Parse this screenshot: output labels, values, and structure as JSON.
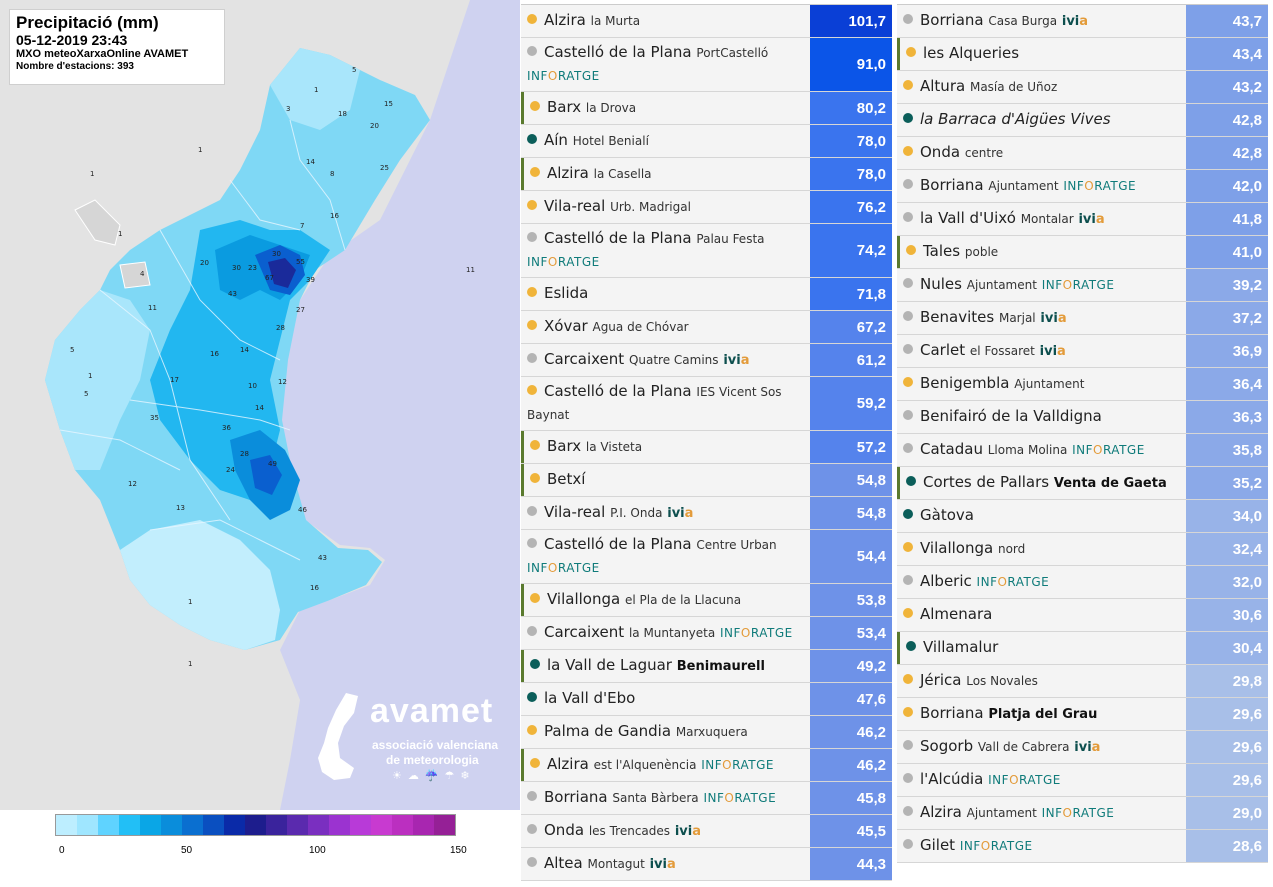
{
  "map": {
    "title": "Precipitació (mm)",
    "datetime": "05-12-2019 23:43",
    "source": "MXO meteoXarxaOnline AVAMET",
    "stations": "Nombre d'estacions: 393",
    "logo_name": "avamet",
    "logo_line1": "associació valenciana",
    "logo_line2": "de meteorologia",
    "logo_icons": "☀☁☔☂❄"
  },
  "legend": {
    "colors": [
      "#bdeeff",
      "#9fe6ff",
      "#5fd3ff",
      "#22bff6",
      "#0aa6e6",
      "#0a8ddb",
      "#0a6fd0",
      "#0a4fc0",
      "#0a2aa8",
      "#1d1d8d",
      "#3a239c",
      "#5a2aae",
      "#7a2fc0",
      "#9b33d0",
      "#b83ad8",
      "#c83ad0",
      "#bb2fc0",
      "#a826b0",
      "#952096"
    ],
    "ticks": [
      "0",
      "50",
      "100",
      "150"
    ]
  },
  "colors": {
    "dot_yellow": "#f0b43a",
    "dot_gray": "#b4b4b4",
    "dot_teal": "#0b5e5a"
  },
  "left_table": [
    {
      "name": "Alzira",
      "sub": "la Murta",
      "net": "",
      "dot": "yellow",
      "value": "101,7",
      "v": 101.7,
      "accent": false
    },
    {
      "name": "Castelló de la Plana",
      "sub": "PortCastelló",
      "net": "INFORATGE",
      "dot": "gray",
      "value": "91,0",
      "v": 91.0,
      "accent": false,
      "tall": true
    },
    {
      "name": "Barx",
      "sub": "la Drova",
      "net": "",
      "dot": "yellow",
      "value": "80,2",
      "v": 80.2,
      "accent": true
    },
    {
      "name": "Aín",
      "sub": "Hotel Benialí",
      "net": "",
      "dot": "teal",
      "value": "78,0",
      "v": 78.0,
      "accent": false
    },
    {
      "name": "Alzira",
      "sub": "la Casella",
      "net": "",
      "dot": "yellow",
      "value": "78,0",
      "v": 78.0,
      "accent": true
    },
    {
      "name": "Vila-real",
      "sub": "Urb. Madrigal",
      "net": "",
      "dot": "yellow",
      "value": "76,2",
      "v": 76.2,
      "accent": false
    },
    {
      "name": "Castelló de la Plana",
      "sub": "Palau Festa",
      "net": "INFORATGE",
      "dot": "gray",
      "value": "74,2",
      "v": 74.2,
      "accent": false,
      "tall": true
    },
    {
      "name": "Eslida",
      "sub": "",
      "net": "",
      "dot": "yellow",
      "value": "71,8",
      "v": 71.8,
      "accent": false
    },
    {
      "name": "Xóvar",
      "sub": "Agua de Chóvar",
      "net": "",
      "dot": "yellow",
      "value": "67,2",
      "v": 67.2,
      "accent": false
    },
    {
      "name": "Carcaixent",
      "sub": "Quatre Camins",
      "ivia": true,
      "net": "",
      "dot": "gray",
      "value": "61,2",
      "v": 61.2,
      "accent": false
    },
    {
      "name": "Castelló de la Plana",
      "sub": "IES Vicent Sos Baynat",
      "net": "",
      "dot": "yellow",
      "value": "59,2",
      "v": 59.2,
      "accent": false,
      "tall": true
    },
    {
      "name": "Barx",
      "sub": "la Visteta",
      "net": "",
      "dot": "yellow",
      "value": "57,2",
      "v": 57.2,
      "accent": true
    },
    {
      "name": "Betxí",
      "sub": "",
      "net": "",
      "dot": "yellow",
      "value": "54,8",
      "v": 54.8,
      "accent": true
    },
    {
      "name": "Vila-real",
      "sub": "P.I. Onda",
      "ivia": true,
      "net": "",
      "dot": "gray",
      "value": "54,8",
      "v": 54.8,
      "accent": false
    },
    {
      "name": "Castelló de la Plana",
      "sub": "Centre Urban",
      "net": "INFORATGE",
      "dot": "gray",
      "value": "54,4",
      "v": 54.4,
      "accent": false,
      "tall": true
    },
    {
      "name": "Vilallonga",
      "sub": "el Pla de la Llacuna",
      "net": "",
      "dot": "yellow",
      "value": "53,8",
      "v": 53.8,
      "accent": true
    },
    {
      "name": "Carcaixent",
      "sub": "la Muntanyeta",
      "net": "INFORATGE",
      "dot": "gray",
      "value": "53,4",
      "v": 53.4,
      "accent": false
    },
    {
      "name": "la Vall de Laguar",
      "sub": "Benimaurell",
      "subbold": true,
      "net": "",
      "dot": "teal",
      "value": "49,2",
      "v": 49.2,
      "accent": true
    },
    {
      "name": "la Vall d'Ebo",
      "sub": "",
      "net": "",
      "dot": "teal",
      "value": "47,6",
      "v": 47.6,
      "accent": false
    },
    {
      "name": "Palma de Gandia",
      "sub": "Marxuquera",
      "net": "",
      "dot": "yellow",
      "value": "46,2",
      "v": 46.2,
      "accent": false
    },
    {
      "name": "Alzira",
      "sub": "est l'Alquenència",
      "net": "INFORATGE",
      "dot": "yellow",
      "value": "46,2",
      "v": 46.2,
      "accent": true
    },
    {
      "name": "Borriana",
      "sub": "Santa Bàrbera",
      "net": "INFORATGE",
      "dot": "gray",
      "value": "45,8",
      "v": 45.8,
      "accent": false
    },
    {
      "name": "Onda",
      "sub": "les Trencades",
      "ivia": true,
      "net": "",
      "dot": "gray",
      "value": "45,5",
      "v": 45.5,
      "accent": false
    },
    {
      "name": "Altea",
      "sub": "Montagut",
      "ivia": true,
      "net": "",
      "dot": "gray",
      "value": "44,3",
      "v": 44.3,
      "accent": false
    }
  ],
  "right_table": [
    {
      "name": "Borriana",
      "sub": "Casa Burga",
      "ivia": true,
      "net": "",
      "dot": "gray",
      "value": "43,7",
      "v": 43.7,
      "accent": false
    },
    {
      "name": "les Alqueries",
      "sub": "",
      "net": "",
      "dot": "yellow",
      "value": "43,4",
      "v": 43.4,
      "accent": true
    },
    {
      "name": "Altura",
      "sub": "Masía de Uñoz",
      "net": "",
      "dot": "yellow",
      "value": "43,2",
      "v": 43.2,
      "accent": false
    },
    {
      "name": "la Barraca d'Aigües Vives",
      "sub": "",
      "net": "",
      "dot": "teal",
      "value": "42,8",
      "v": 42.8,
      "accent": false,
      "italic": true
    },
    {
      "name": "Onda",
      "sub": "centre",
      "net": "",
      "dot": "yellow",
      "value": "42,8",
      "v": 42.8,
      "accent": false
    },
    {
      "name": "Borriana",
      "sub": "Ajuntament",
      "net": "INFORATGE",
      "dot": "gray",
      "value": "42,0",
      "v": 42.0,
      "accent": false
    },
    {
      "name": "la Vall d'Uixó",
      "sub": "Montalar",
      "ivia": true,
      "net": "",
      "dot": "gray",
      "value": "41,8",
      "v": 41.8,
      "accent": false
    },
    {
      "name": "Tales",
      "sub": "poble",
      "net": "",
      "dot": "yellow",
      "value": "41,0",
      "v": 41.0,
      "accent": true
    },
    {
      "name": "Nules",
      "sub": "Ajuntament",
      "net": "INFORATGE",
      "dot": "gray",
      "value": "39,2",
      "v": 39.2,
      "accent": false
    },
    {
      "name": "Benavites",
      "sub": "Marjal",
      "ivia": true,
      "net": "",
      "dot": "gray",
      "value": "37,2",
      "v": 37.2,
      "accent": false
    },
    {
      "name": "Carlet",
      "sub": "el Fossaret",
      "ivia": true,
      "net": "",
      "dot": "gray",
      "value": "36,9",
      "v": 36.9,
      "accent": false
    },
    {
      "name": "Benigembla",
      "sub": "Ajuntament",
      "net": "",
      "dot": "yellow",
      "value": "36,4",
      "v": 36.4,
      "accent": false
    },
    {
      "name": "Benifairó de la Valldigna",
      "sub": "",
      "net": "",
      "dot": "gray",
      "value": "36,3",
      "v": 36.3,
      "accent": false
    },
    {
      "name": "Catadau",
      "sub": "Lloma Molina",
      "net": "INFORATGE",
      "dot": "gray",
      "value": "35,8",
      "v": 35.8,
      "accent": false
    },
    {
      "name": "Cortes de Pallars",
      "sub": "Venta de Gaeta",
      "subbold": true,
      "net": "",
      "dot": "teal",
      "value": "35,2",
      "v": 35.2,
      "accent": true
    },
    {
      "name": "Gàtova",
      "sub": "",
      "net": "",
      "dot": "teal",
      "value": "34,0",
      "v": 34.0,
      "accent": false
    },
    {
      "name": "Vilallonga",
      "sub": "nord",
      "net": "",
      "dot": "yellow",
      "value": "32,4",
      "v": 32.4,
      "accent": false
    },
    {
      "name": "Alberic",
      "sub": "",
      "net": "INFORATGE",
      "dot": "gray",
      "value": "32,0",
      "v": 32.0,
      "accent": false
    },
    {
      "name": "Almenara",
      "sub": "",
      "net": "",
      "dot": "yellow",
      "value": "30,6",
      "v": 30.6,
      "accent": false
    },
    {
      "name": "Villamalur",
      "sub": "",
      "net": "",
      "dot": "teal",
      "value": "30,4",
      "v": 30.4,
      "accent": true
    },
    {
      "name": "Jérica",
      "sub": "Los Novales",
      "net": "",
      "dot": "yellow",
      "value": "29,8",
      "v": 29.8,
      "accent": false
    },
    {
      "name": "Borriana",
      "sub": "Platja del Grau",
      "subbold": true,
      "net": "",
      "dot": "yellow",
      "value": "29,6",
      "v": 29.6,
      "accent": false
    },
    {
      "name": "Sogorb",
      "sub": "Vall de Cabrera",
      "ivia": true,
      "net": "",
      "dot": "gray",
      "value": "29,6",
      "v": 29.6,
      "accent": false
    },
    {
      "name": "l'Alcúdia",
      "sub": "",
      "net": "INFORATGE",
      "dot": "gray",
      "value": "29,6",
      "v": 29.6,
      "accent": false
    },
    {
      "name": "Alzira",
      "sub": "Ajuntament",
      "net": "INFORATGE",
      "dot": "gray",
      "value": "29,0",
      "v": 29.0,
      "accent": false
    },
    {
      "name": "Gilet",
      "sub": "",
      "net": "INFORATGE",
      "dot": "gray",
      "value": "28,6",
      "v": 28.6,
      "accent": false
    }
  ]
}
